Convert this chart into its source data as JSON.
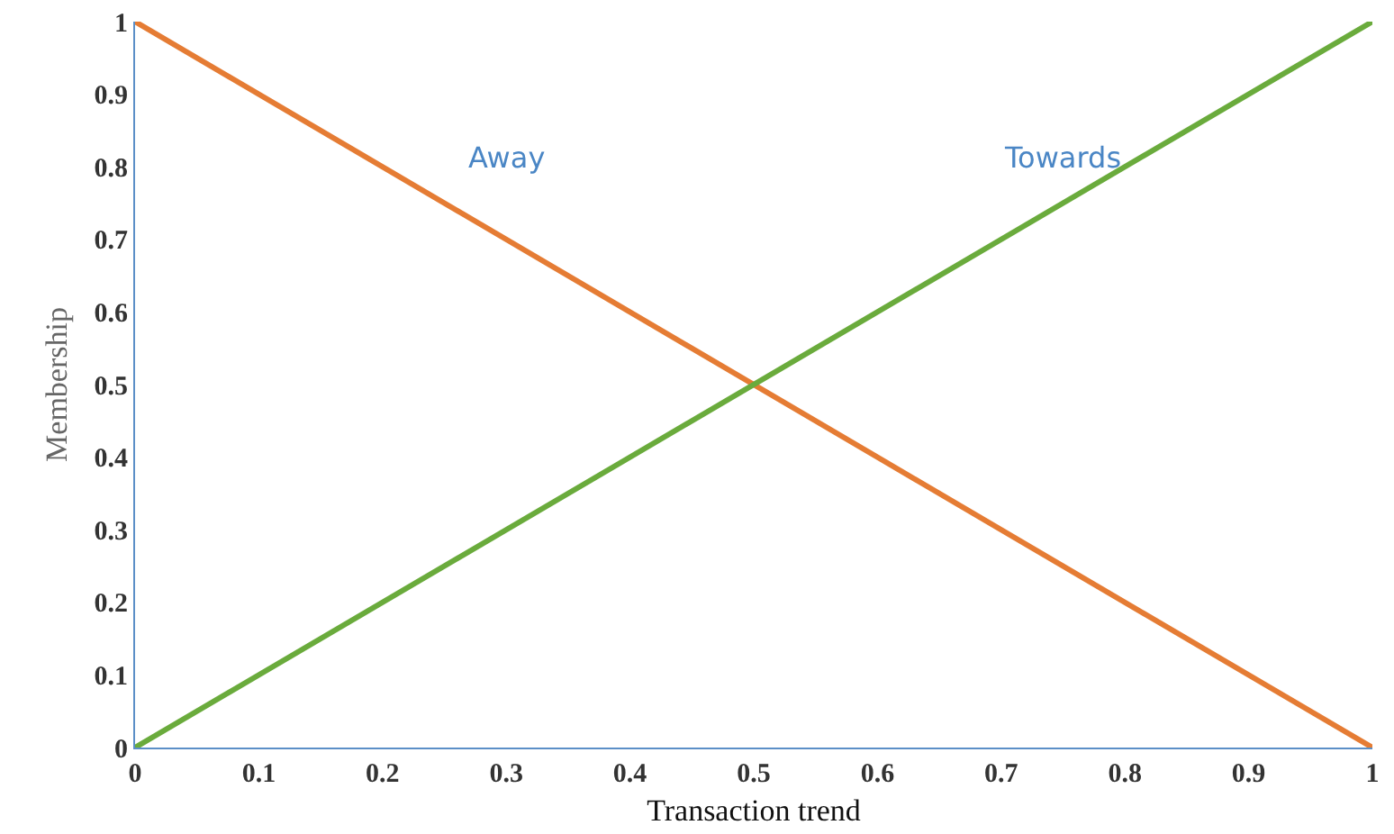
{
  "chart_data": {
    "type": "line",
    "xlabel": "Transaction trend",
    "ylabel": "Membership",
    "x": [
      0,
      1
    ],
    "series": [
      {
        "color": "#e57c34",
        "values": [
          1,
          0
        ]
      },
      {
        "color": "#6aab3c",
        "values": [
          0,
          1
        ]
      }
    ],
    "xlim": [
      0,
      1
    ],
    "ylim": [
      0,
      1
    ],
    "xticks": [
      0,
      0.1,
      0.2,
      0.3,
      0.4,
      0.5,
      0.6,
      0.7,
      0.8,
      0.9,
      1
    ],
    "yticks": [
      0,
      0.1,
      0.2,
      0.3,
      0.4,
      0.5,
      0.6,
      0.7,
      0.8,
      0.9,
      1
    ],
    "grid": false,
    "marker": "none",
    "line_style": "solid",
    "annotations": [
      "Away",
      "Towards"
    ]
  }
}
